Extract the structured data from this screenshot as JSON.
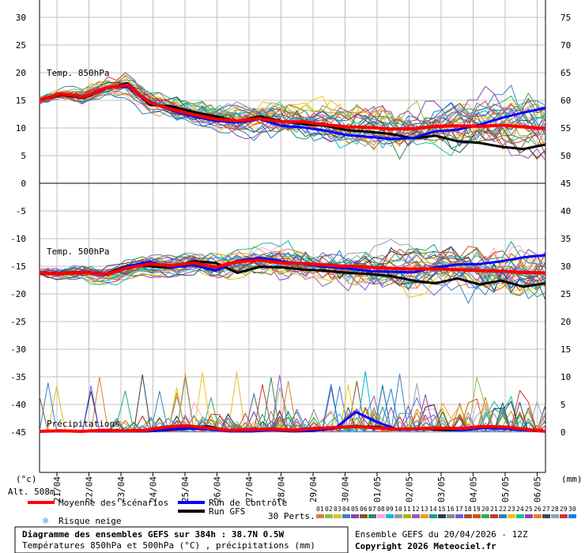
{
  "chart_data": [
    {
      "type": "line",
      "panel_label": "Temp. 850hPa",
      "left_ticks": [
        "30",
        "25",
        "20",
        "15",
        "10",
        "5",
        "0"
      ],
      "right_ticks": [
        "75",
        "70",
        "65",
        "60",
        "55",
        "50"
      ],
      "ylim": [
        0,
        33
      ],
      "x_start": 0,
      "x_end": 16,
      "series": [
        {
          "name": "Moyenne des scénarios",
          "values": [
            15,
            16.2,
            15.6,
            17.2,
            17.8,
            14.6,
            13.4,
            12.4,
            11.6,
            11.3,
            11.7,
            11.1,
            11.1,
            10.6,
            10.2,
            10.1,
            9.8,
            9.9,
            10.3,
            10.4,
            10.3,
            10.5,
            10.2,
            9.9
          ]
        },
        {
          "name": "Run de contrôle",
          "values": [
            15,
            16.1,
            15.5,
            17.3,
            17.5,
            14.8,
            13.2,
            12.1,
            11.3,
            11.0,
            11.6,
            10.4,
            10.1,
            9.5,
            8.7,
            8.4,
            8.0,
            8.2,
            9.4,
            9.7,
            10.6,
            11.8,
            12.8,
            13.6
          ]
        },
        {
          "name": "Run GFS",
          "values": [
            15,
            16,
            15.4,
            17.1,
            18.1,
            14.2,
            13.9,
            12.9,
            12.1,
            11.2,
            12.1,
            11.2,
            10.7,
            10.4,
            9.6,
            9.3,
            8.9,
            8.1,
            8.6,
            7.6,
            7.3,
            6.6,
            6.2,
            7.0
          ]
        }
      ]
    },
    {
      "type": "line",
      "panel_label": "Temp. 500hPa",
      "left_ticks": [
        "0",
        "-5",
        "-10",
        "-15",
        "-20",
        "-25",
        "-30",
        "-35",
        "-40",
        "-45"
      ],
      "right_ticks": [
        "45",
        "40",
        "35",
        "30",
        "25",
        "20",
        "15",
        "10",
        "5",
        "0"
      ],
      "ylim": [
        -50,
        0
      ],
      "x_start": 0,
      "x_end": 16,
      "series": [
        {
          "name": "Moyenne des scénarios",
          "values": [
            -16.2,
            -16.4,
            -16.1,
            -16.5,
            -15.3,
            -14.6,
            -14.9,
            -14.4,
            -15.2,
            -14.2,
            -13.9,
            -14.4,
            -14.5,
            -14.8,
            -15.0,
            -15.2,
            -15.4,
            -15.5,
            -15.5,
            -15.6,
            -15.8,
            -15.9,
            -16.1,
            -16.2
          ]
        },
        {
          "name": "Run de contrôle",
          "values": [
            -16.3,
            -16.5,
            -16.0,
            -16.6,
            -15.0,
            -14.2,
            -15.2,
            -14.8,
            -15.8,
            -14.0,
            -13.5,
            -14.1,
            -14.6,
            -15.1,
            -15.4,
            -15.9,
            -16.0,
            -16.1,
            -15.2,
            -14.7,
            -14.6,
            -14.1,
            -13.4,
            -13.0
          ]
        },
        {
          "name": "Run GFS",
          "values": [
            -16.1,
            -16.3,
            -16.0,
            -16.4,
            -14.9,
            -15.0,
            -15.3,
            -14.1,
            -14.4,
            -16.2,
            -15.1,
            -15.2,
            -15.6,
            -15.8,
            -16.2,
            -16.4,
            -16.8,
            -17.6,
            -18.1,
            -17.2,
            -18.3,
            -17.6,
            -18.7,
            -18.1
          ]
        }
      ]
    },
    {
      "type": "line",
      "panel_label": "Précipitations",
      "right_ticks": [
        "20",
        "15",
        "10",
        "5",
        "0"
      ],
      "ylim": [
        0,
        20
      ],
      "x_start": 0,
      "x_end": 16,
      "series": [
        {
          "name": "Moyenne des scénarios",
          "values": [
            0,
            0.1,
            0,
            0.2,
            0.1,
            0.2,
            0.8,
            1.0,
            0.6,
            0.2,
            0.3,
            0.4,
            0.2,
            0.5,
            0.7,
            0.9,
            0.6,
            0.4,
            0.5,
            0.6,
            0.5,
            0.9,
            0.8,
            0.4,
            0
          ]
        },
        {
          "name": "Run de contrôle",
          "values": [
            0,
            0,
            0,
            0,
            0,
            0,
            0.3,
            0.5,
            0.4,
            0,
            0,
            0.2,
            0,
            0.2,
            0.5,
            3.5,
            1.7,
            0.3,
            0.4,
            0.6,
            0.2,
            0.6,
            0.5,
            0.2,
            0
          ]
        },
        {
          "name": "Run GFS",
          "values": [
            0,
            0,
            0,
            0,
            0,
            0,
            0.2,
            0.8,
            0.9,
            0.1,
            0,
            0.3,
            0,
            0.1,
            0.6,
            0.9,
            0.8,
            0.4,
            0.5,
            0.3,
            0.2,
            0.9,
            0.7,
            0.2,
            0
          ]
        }
      ]
    }
  ],
  "x_labels": [
    "21/04",
    "22/04",
    "23/04",
    "24/04",
    "25/04",
    "26/04",
    "27/04",
    "28/04",
    "29/04",
    "30/04",
    "01/05",
    "02/05",
    "03/05",
    "04/05",
    "05/05",
    "06/05"
  ],
  "axis_units": {
    "left": "(°c)",
    "right": "(mm)"
  },
  "altitude": "Alt. 508m",
  "legend": {
    "mean": "Moyenne des scénarios",
    "control": "Run de contrôle",
    "gfs": "Run GFS",
    "snow": "Risque neige",
    "perts": "30 Perts.",
    "pert_labels": [
      "01",
      "02",
      "03",
      "04",
      "05",
      "06",
      "07",
      "08",
      "09",
      "10",
      "11",
      "12",
      "13",
      "14",
      "15",
      "16",
      "17",
      "18",
      "19",
      "20",
      "21",
      "22",
      "23",
      "24",
      "25",
      "26",
      "27",
      "28",
      "29",
      "30"
    ]
  },
  "colors": {
    "mean": "#ff0000",
    "control": "#0000ff",
    "gfs": "#000000",
    "grid": "#c0c0c0",
    "snow": "#4aa3df",
    "perts": [
      "#e07b39",
      "#8bc34a",
      "#e0c020",
      "#3d7fc4",
      "#8e44ad",
      "#7a5c1e",
      "#2e8b57",
      "#ff9ff3",
      "#00bcd4",
      "#999999",
      "#b0b000",
      "#9b59b6",
      "#f39c12",
      "#16a085",
      "#2c3e50",
      "#7f8c8d",
      "#6c5ce7",
      "#a0522d",
      "#d35400",
      "#27ae60",
      "#c0392b",
      "#2980b9",
      "#f1c40f",
      "#1abc9c",
      "#8e44ad",
      "#e67e22",
      "#34495e",
      "#95a5a6",
      "#d63031",
      "#0984e3"
    ]
  },
  "footer": {
    "title": "Diagramme des ensembles GEFS sur 384h : 38.7N 0.5W",
    "subtitle": "Températures 850hPa et 500hPa (°C) , précipitations (mm)",
    "run": "Ensemble GEFS du 20/04/2026 - 12Z",
    "copyright": "Copyright 2026 Meteociel.fr"
  }
}
